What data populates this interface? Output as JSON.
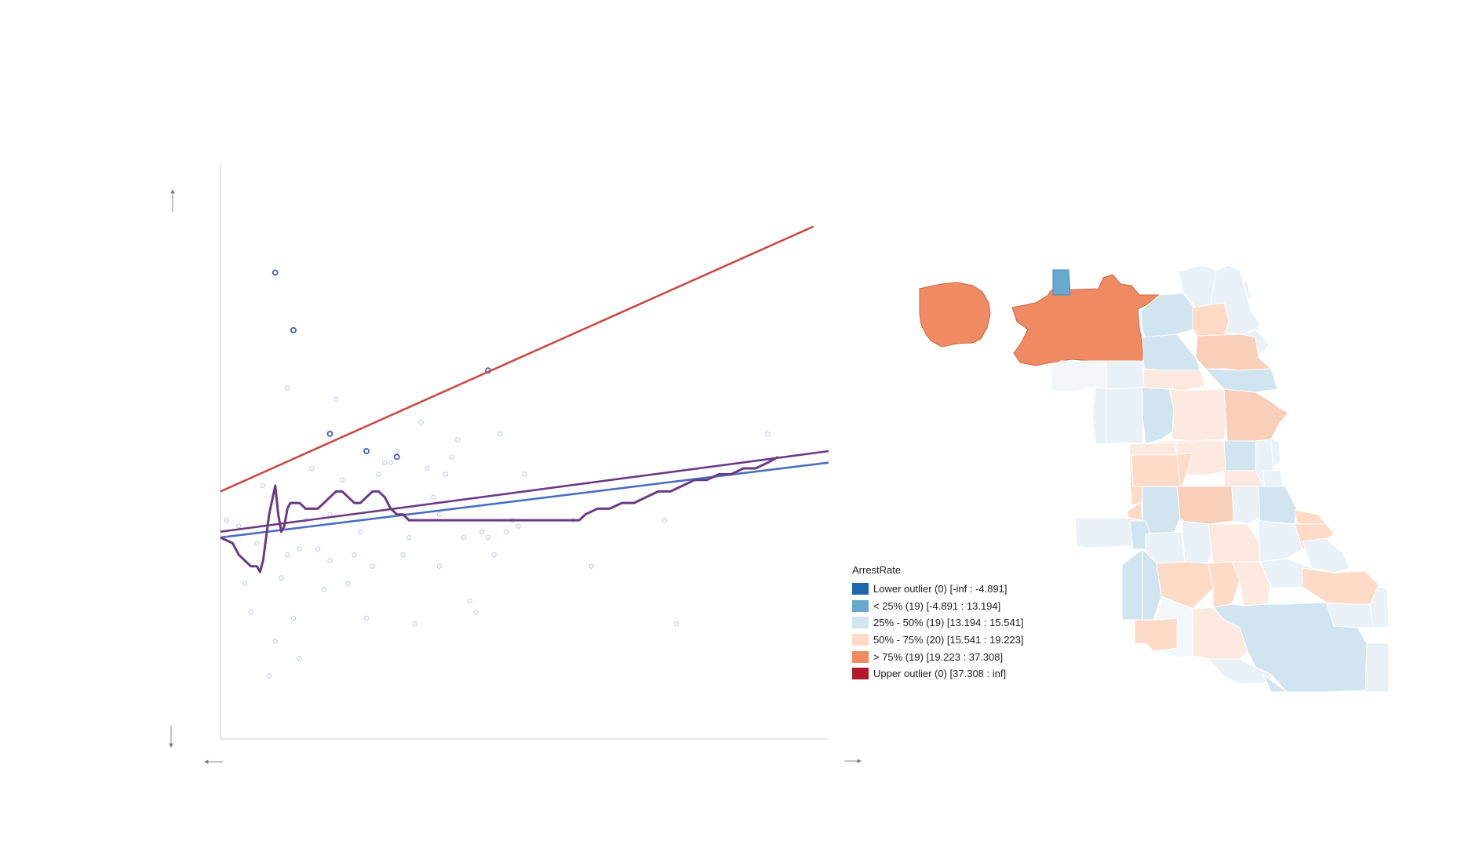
{
  "chart_data": [
    {
      "type": "scatter",
      "title": "",
      "xlabel": "",
      "ylabel": "",
      "xlim": [
        0,
        100
      ],
      "ylim": [
        0,
        100
      ],
      "grid": false,
      "points_regular": [
        [
          1,
          38
        ],
        [
          3,
          37
        ],
        [
          4,
          27
        ],
        [
          5,
          22
        ],
        [
          6,
          34
        ],
        [
          7,
          44
        ],
        [
          8,
          11
        ],
        [
          9,
          17
        ],
        [
          10,
          28
        ],
        [
          11,
          61
        ],
        [
          11,
          32
        ],
        [
          12,
          21
        ],
        [
          13,
          14
        ],
        [
          13,
          33
        ],
        [
          14,
          38
        ],
        [
          15,
          47
        ],
        [
          16,
          33
        ],
        [
          17,
          26
        ],
        [
          18,
          39
        ],
        [
          18,
          31
        ],
        [
          19,
          59
        ],
        [
          20,
          45
        ],
        [
          21,
          27
        ],
        [
          22,
          32
        ],
        [
          23,
          36
        ],
        [
          24,
          21
        ],
        [
          25,
          30
        ],
        [
          26,
          46
        ],
        [
          27,
          48
        ],
        [
          28,
          48
        ],
        [
          29,
          50
        ],
        [
          30,
          32
        ],
        [
          31,
          35
        ],
        [
          32,
          20
        ],
        [
          33,
          55
        ],
        [
          34,
          47
        ],
        [
          35,
          42
        ],
        [
          36,
          39
        ],
        [
          36,
          30
        ],
        [
          37,
          46
        ],
        [
          38,
          49
        ],
        [
          39,
          52
        ],
        [
          40,
          35
        ],
        [
          41,
          24
        ],
        [
          42,
          22
        ],
        [
          43,
          36
        ],
        [
          44,
          35
        ],
        [
          45,
          32
        ],
        [
          46,
          53
        ],
        [
          47,
          36
        ],
        [
          48,
          38
        ],
        [
          49,
          37
        ],
        [
          50,
          46
        ],
        [
          58,
          38
        ],
        [
          61,
          30
        ],
        [
          73,
          38
        ],
        [
          75,
          20
        ],
        [
          90,
          53
        ]
      ],
      "points_highlighted": [
        [
          9,
          81
        ],
        [
          12,
          71
        ],
        [
          18,
          53
        ],
        [
          24,
          50
        ],
        [
          29,
          49
        ],
        [
          44,
          64
        ]
      ],
      "lines": [
        {
          "x": [
            0,
            97.5
          ],
          "y": [
            43,
            89
          ]
        },
        {
          "x": [
            0,
            100
          ],
          "y": [
            35,
            48
          ]
        },
        {
          "x": [
            0,
            100
          ],
          "y": [
            36,
            50
          ]
        }
      ],
      "smooth_curve": {
        "x": [
          0,
          2,
          3,
          4,
          5,
          6,
          6.5,
          7,
          8,
          9,
          9.5,
          10,
          10.5,
          11,
          11.5,
          12,
          13,
          14,
          15,
          16,
          17,
          18,
          19,
          20,
          21,
          22,
          23,
          24,
          25,
          26,
          27,
          28,
          29,
          30,
          31,
          32,
          33,
          34,
          35,
          36,
          37,
          38,
          39,
          40,
          42,
          44,
          46,
          48,
          50,
          52,
          54,
          56,
          58,
          59,
          60,
          62,
          64,
          66,
          68,
          70,
          72,
          74,
          76,
          78,
          80,
          82,
          84,
          86,
          88,
          90,
          91.7
        ],
        "y": [
          35,
          34,
          32,
          31,
          30,
          30,
          29,
          31,
          39,
          44,
          39,
          36,
          37,
          40,
          41,
          41,
          41,
          40,
          40,
          40,
          41,
          42,
          43,
          43,
          42,
          41,
          41,
          42,
          43,
          43,
          42,
          40,
          39,
          39,
          38,
          38,
          38,
          38,
          38,
          38,
          38,
          38,
          38,
          38,
          38,
          38,
          38,
          38,
          38,
          38,
          38,
          38,
          38,
          38,
          39,
          40,
          40,
          41,
          41,
          42,
          43,
          43,
          44,
          45,
          45,
          46,
          46,
          47,
          47,
          48,
          49
        ]
      },
      "colors": {
        "point": "#c7cfe8",
        "point_highlight": "#4c6cb5",
        "red_line": "#c84b44",
        "blue_line": "#4a6fbf",
        "purple_line": "#6a3a84"
      }
    },
    {
      "type": "choropleth-map",
      "legend": {
        "title": "ArrestRate",
        "items": [
          {
            "label": "Lower outlier (0)  [-inf : -4.891]",
            "color": "#2166ac"
          },
          {
            "label": "< 25% (19)  [-4.891 : 13.194]",
            "color": "#67a9cf"
          },
          {
            "label": "25% - 50% (19)  [13.194 : 15.541]",
            "color": "#d1e5f0"
          },
          {
            "label": "50% - 75% (20)  [15.541 : 19.223]",
            "color": "#fddbc7"
          },
          {
            "label": "> 75% (19)  [19.223 : 37.308]",
            "color": "#ef8a62"
          },
          {
            "label": "Upper outlier (0)  [37.308 : inf]",
            "color": "#b2182b"
          }
        ]
      }
    }
  ]
}
